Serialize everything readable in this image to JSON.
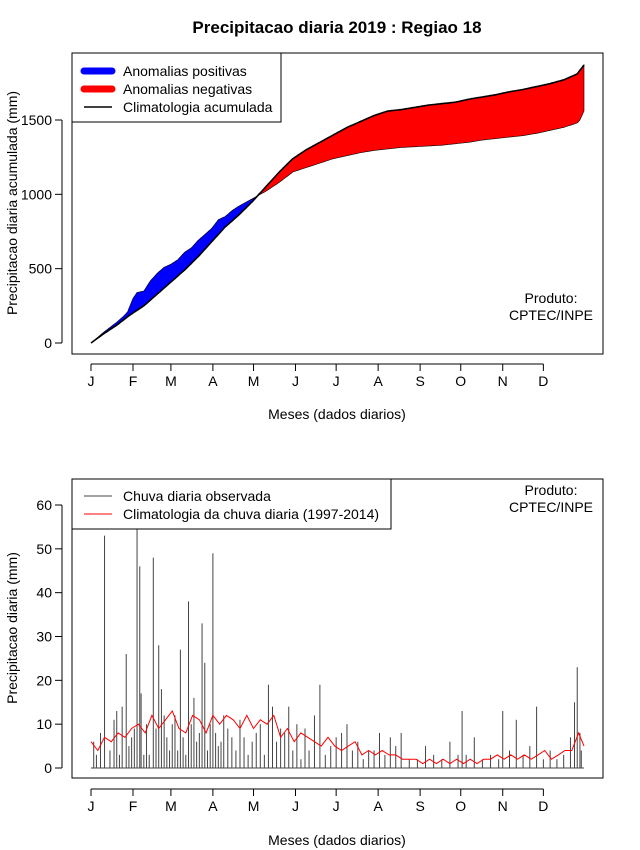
{
  "page": {
    "title": "Precipitacao diaria 2019 : Regiao 18"
  },
  "chart_data": [
    {
      "type": "area",
      "name": "accumulated",
      "xlabel": "Meses (dados diarios)",
      "ylabel": "Precipitacao diaria acumulada (mm)",
      "xlim": [
        1,
        365
      ],
      "ylim": [
        0,
        1880
      ],
      "month_labels": [
        "J",
        "F",
        "M",
        "A",
        "M",
        "J",
        "J",
        "A",
        "S",
        "O",
        "N",
        "D"
      ],
      "month_days": [
        1,
        32,
        60,
        91,
        121,
        152,
        182,
        213,
        244,
        274,
        305,
        335
      ],
      "y_ticks": [
        0,
        500,
        1000,
        1500
      ],
      "y_tick_labels": [
        "0",
        "500",
        "1000",
        "1500"
      ],
      "legend": {
        "position": "top-left",
        "entries": [
          {
            "label": "Anomalias positivas",
            "color": "#0000ff"
          },
          {
            "label": "Anomalias negativas",
            "color": "#ff0000"
          },
          {
            "label": "Climatologia acumulada",
            "color": "#000000"
          }
        ]
      },
      "note_lines": [
        "Produto:",
        "CPTEC/INPE"
      ],
      "climatology_accum": {
        "days": [
          1,
          10,
          20,
          30,
          40,
          50,
          60,
          70,
          80,
          90,
          100,
          110,
          120,
          130,
          140,
          150,
          160,
          170,
          180,
          190,
          200,
          210,
          220,
          230,
          240,
          250,
          260,
          270,
          280,
          290,
          300,
          310,
          320,
          330,
          340,
          350,
          360,
          365
        ],
        "values": [
          0,
          60,
          120,
          190,
          250,
          330,
          410,
          490,
          580,
          680,
          780,
          860,
          950,
          1050,
          1150,
          1240,
          1300,
          1350,
          1400,
          1450,
          1490,
          1530,
          1560,
          1570,
          1585,
          1600,
          1610,
          1620,
          1640,
          1655,
          1670,
          1690,
          1705,
          1725,
          1745,
          1770,
          1810,
          1870
        ]
      },
      "observed_accum": {
        "days": [
          1,
          10,
          20,
          25,
          28,
          32,
          35,
          40,
          45,
          50,
          55,
          60,
          65,
          70,
          75,
          80,
          85,
          90,
          95,
          100,
          105,
          110,
          115,
          120,
          130,
          140,
          150,
          160,
          170,
          180,
          190,
          200,
          210,
          220,
          230,
          240,
          250,
          260,
          270,
          280,
          290,
          300,
          310,
          320,
          330,
          340,
          350,
          360,
          362,
          365
        ],
        "values": [
          0,
          70,
          140,
          180,
          210,
          300,
          340,
          350,
          420,
          470,
          510,
          530,
          560,
          610,
          640,
          690,
          730,
          770,
          830,
          850,
          890,
          920,
          945,
          970,
          1020,
          1080,
          1150,
          1180,
          1210,
          1240,
          1260,
          1280,
          1295,
          1305,
          1315,
          1320,
          1325,
          1330,
          1340,
          1350,
          1365,
          1375,
          1385,
          1395,
          1410,
          1430,
          1450,
          1480,
          1500,
          1560
        ]
      }
    },
    {
      "type": "bar",
      "name": "daily",
      "xlabel": "Meses (dados diarios)",
      "ylabel": "Precipitacao diaria (mm)",
      "xlim": [
        1,
        365
      ],
      "ylim": [
        -2,
        64
      ],
      "month_labels": [
        "J",
        "F",
        "M",
        "A",
        "M",
        "J",
        "J",
        "A",
        "S",
        "O",
        "N",
        "D"
      ],
      "month_days": [
        1,
        32,
        60,
        91,
        121,
        152,
        182,
        213,
        244,
        274,
        305,
        335
      ],
      "y_ticks": [
        0,
        10,
        20,
        30,
        40,
        50,
        60
      ],
      "y_tick_labels": [
        "0",
        "10",
        "20",
        "30",
        "40",
        "50",
        "60"
      ],
      "legend": {
        "position": "top-left",
        "entries": [
          {
            "label": "Chuva diaria observada",
            "color": "#444444"
          },
          {
            "label": "Climatologia da chuva diaria (1997-2014)",
            "color": "#ff0000"
          }
        ]
      },
      "note_lines": [
        "Produto:",
        "CPTEC/INPE"
      ],
      "observed_daily_peaks": {
        "days": [
          3,
          5,
          8,
          11,
          15,
          18,
          20,
          22,
          24,
          27,
          29,
          31,
          33,
          35,
          37,
          38,
          40,
          42,
          44,
          47,
          49,
          51,
          53,
          55,
          57,
          59,
          61,
          63,
          65,
          67,
          69,
          71,
          73,
          75,
          77,
          79,
          81,
          83,
          85,
          87,
          89,
          91,
          93,
          95,
          97,
          99,
          102,
          105,
          108,
          111,
          114,
          117,
          120,
          123,
          126,
          129,
          132,
          135,
          138,
          141,
          144,
          147,
          150,
          153,
          156,
          159,
          162,
          166,
          170,
          174,
          178,
          182,
          186,
          190,
          194,
          198,
          202,
          206,
          210,
          214,
          218,
          222,
          226,
          230,
          236,
          242,
          248,
          254,
          260,
          266,
          272,
          275,
          278,
          284,
          290,
          296,
          302,
          305,
          310,
          315,
          320,
          325,
          330,
          335,
          340,
          345,
          350,
          355,
          358,
          360,
          362,
          363
        ],
        "values": [
          6,
          3,
          8,
          53,
          4,
          11,
          13,
          3,
          14,
          26,
          5,
          7,
          9,
          63,
          46,
          17,
          3,
          10,
          3,
          48,
          9,
          28,
          18,
          12,
          7,
          4,
          10,
          12,
          4,
          27,
          7,
          3,
          38,
          10,
          16,
          6,
          8,
          33,
          24,
          4,
          10,
          49,
          8,
          5,
          6,
          12,
          9,
          7,
          4,
          11,
          7,
          3,
          6,
          8,
          10,
          3,
          19,
          14,
          6,
          9,
          8,
          14,
          4,
          10,
          2,
          9,
          4,
          12,
          19,
          3,
          5,
          7,
          8,
          10,
          4,
          6,
          2,
          4,
          4,
          8,
          3,
          7,
          5,
          8,
          2,
          2,
          5,
          3,
          2,
          6,
          3,
          13,
          3,
          7,
          2,
          3,
          2,
          13,
          4,
          11,
          3,
          5,
          14,
          2,
          4,
          2,
          3,
          7,
          15,
          23,
          8,
          4
        ]
      },
      "climatology_daily": {
        "days": [
          1,
          6,
          11,
          16,
          21,
          26,
          31,
          36,
          41,
          46,
          51,
          56,
          61,
          66,
          71,
          76,
          81,
          86,
          91,
          96,
          101,
          106,
          111,
          116,
          121,
          126,
          131,
          136,
          141,
          146,
          151,
          156,
          161,
          166,
          171,
          176,
          181,
          186,
          191,
          196,
          201,
          206,
          211,
          216,
          221,
          226,
          231,
          236,
          241,
          246,
          251,
          256,
          261,
          266,
          271,
          276,
          281,
          286,
          291,
          296,
          301,
          306,
          311,
          316,
          321,
          326,
          331,
          336,
          341,
          346,
          351,
          356,
          361,
          365
        ],
        "values": [
          6,
          4,
          7,
          6,
          8,
          7,
          9,
          10,
          8,
          12,
          9,
          11,
          13,
          9,
          8,
          12,
          11,
          8,
          12,
          10,
          12,
          11,
          9,
          12,
          9,
          11,
          10,
          12,
          7,
          9,
          6,
          8,
          7,
          6,
          5,
          7,
          5,
          4,
          5,
          6,
          3,
          4,
          3,
          4,
          3,
          3,
          2,
          2,
          2,
          1,
          2,
          1,
          2,
          1,
          2,
          1,
          2,
          1,
          2,
          2,
          3,
          2,
          3,
          2,
          3,
          2,
          3,
          4,
          2,
          3,
          4,
          4,
          8,
          5
        ]
      }
    }
  ]
}
